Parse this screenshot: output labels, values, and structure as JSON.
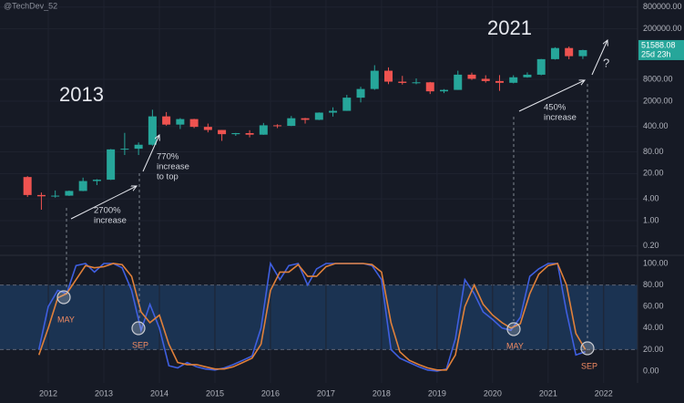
{
  "watermark": "@TechDev_52",
  "chart_data": [
    {
      "type": "candlestick",
      "log_scale": true,
      "xlim": [
        2011.13,
        2022.61
      ],
      "ylim": [
        0.11,
        1250000
      ],
      "yticks": [
        {
          "value": 800000,
          "label": "800000.00"
        },
        {
          "value": 200000,
          "label": "200000.00"
        },
        {
          "value": 8000,
          "label": "8000.00"
        },
        {
          "value": 2000,
          "label": "2000.00"
        },
        {
          "value": 400,
          "label": "400.00"
        },
        {
          "value": 80,
          "label": "80.00"
        },
        {
          "value": 20,
          "label": "20.00"
        },
        {
          "value": 4,
          "label": "4.00"
        },
        {
          "value": 1,
          "label": "1.00"
        },
        {
          "value": 0.2,
          "label": "0.20"
        }
      ],
      "up_color": "#26a69a",
      "down_color": "#ef5350",
      "x": [
        2011.625,
        2011.875,
        2012.125,
        2012.375,
        2012.625,
        2012.875,
        2013.125,
        2013.375,
        2013.625,
        2013.875,
        2014.125,
        2014.375,
        2014.625,
        2014.875,
        2015.125,
        2015.375,
        2015.625,
        2015.875,
        2016.125,
        2016.375,
        2016.625,
        2016.875,
        2017.125,
        2017.375,
        2017.625,
        2017.875,
        2018.125,
        2018.375,
        2018.625,
        2018.875,
        2019.125,
        2019.375,
        2019.625,
        2019.875,
        2020.125,
        2020.375,
        2020.625,
        2020.875,
        2021.125,
        2021.375,
        2021.625
      ],
      "open": [
        16,
        5.1,
        4.7,
        4.9,
        6.6,
        12.4,
        13.5,
        93,
        97,
        125,
        760,
        450,
        640,
        390,
        320,
        245,
        262,
        237,
        430,
        415,
        675,
        610,
        965,
        1080,
        2500,
        4340,
        13880,
        6930,
        6390,
        6630,
        3740,
        4100,
        10800,
        8300,
        7200,
        6440,
        9140,
        10780,
        28990,
        58800,
        35040
      ],
      "high": [
        17,
        6,
        6.8,
        6.8,
        15.4,
        14,
        95,
        266,
        145,
        1160,
        1000,
        680,
        650,
        480,
        320,
        265,
        315,
        500,
        460,
        780,
        690,
        980,
        1350,
        2980,
        5000,
        19700,
        17200,
        9990,
        8500,
        6800,
        4300,
        13880,
        12300,
        10400,
        10500,
        10400,
        12470,
        29300,
        61800,
        64800,
        52900
      ],
      "low": [
        4.5,
        2,
        4.3,
        4.8,
        6.5,
        9.6,
        13.3,
        65,
        65,
        118,
        420,
        340,
        360,
        275,
        160,
        220,
        200,
        235,
        360,
        410,
        480,
        600,
        750,
        1080,
        1850,
        4100,
        5900,
        5750,
        5880,
        3150,
        3350,
        4100,
        7750,
        6500,
        3850,
        6200,
        8900,
        10400,
        28100,
        28800,
        29300
      ],
      "close": [
        5.1,
        4.7,
        4.9,
        6.6,
        12.4,
        13.5,
        93,
        97,
        125,
        760,
        450,
        640,
        390,
        320,
        245,
        262,
        237,
        430,
        415,
        675,
        610,
        965,
        1080,
        2500,
        4340,
        13880,
        6930,
        6390,
        6630,
        3740,
        4100,
        10800,
        8300,
        7200,
        6440,
        9140,
        10780,
        28990,
        58800,
        35040,
        51588.08
      ],
      "last_price": 51588.08,
      "countdown": "25d 23h",
      "annotations": [
        [
          "2013"
        ],
        [
          "2021"
        ],
        [
          "2700%",
          "increase"
        ],
        [
          "770%",
          "increase",
          "to top"
        ],
        [
          "450%",
          "increase"
        ],
        [
          "?"
        ]
      ]
    },
    {
      "type": "line",
      "grid": true,
      "xlim": [
        2011.13,
        2022.61
      ],
      "xticks": [
        2012,
        2013,
        2014,
        2015,
        2016,
        2017,
        2018,
        2019,
        2020,
        2021,
        2022
      ],
      "ylim": [
        -11,
        107.6
      ],
      "yticks": [
        {
          "value": 100,
          "label": "100.00"
        },
        {
          "value": 80,
          "label": "80.00"
        },
        {
          "value": 60,
          "label": "60.00"
        },
        {
          "value": 40,
          "label": "40.00"
        },
        {
          "value": 20,
          "label": "20.00"
        },
        {
          "value": 0,
          "label": "0.00"
        }
      ],
      "band": [
        20,
        80
      ],
      "band_color": "#1b3352",
      "x": [
        2011.83,
        2012.0,
        2012.17,
        2012.33,
        2012.5,
        2012.67,
        2012.83,
        2013.0,
        2013.17,
        2013.33,
        2013.5,
        2013.67,
        2013.83,
        2014.0,
        2014.17,
        2014.33,
        2014.5,
        2014.67,
        2014.83,
        2015.0,
        2015.17,
        2015.33,
        2015.5,
        2015.67,
        2015.83,
        2016.0,
        2016.17,
        2016.33,
        2016.5,
        2016.67,
        2016.83,
        2017.0,
        2017.17,
        2017.33,
        2017.5,
        2017.67,
        2017.83,
        2018.0,
        2018.17,
        2018.33,
        2018.5,
        2018.67,
        2018.83,
        2019.0,
        2019.17,
        2019.33,
        2019.5,
        2019.67,
        2019.83,
        2020.0,
        2020.17,
        2020.33,
        2020.5,
        2020.67,
        2020.83,
        2021.0,
        2021.17,
        2021.33,
        2021.5,
        2021.67
      ],
      "series": [
        {
          "color": "#3f5fe0",
          "values": [
            20,
            60,
            75,
            72,
            98,
            100,
            92,
            100,
            100,
            96,
            75,
            38,
            62,
            40,
            5,
            3,
            8,
            4,
            2,
            1,
            3,
            6,
            10,
            14,
            40,
            100,
            85,
            98,
            100,
            80,
            95,
            100,
            100,
            100,
            100,
            100,
            98,
            85,
            20,
            12,
            8,
            4,
            1,
            0,
            2,
            30,
            85,
            72,
            55,
            48,
            40,
            38,
            50,
            88,
            95,
            100,
            100,
            55,
            15,
            18
          ]
        },
        {
          "color": "#e0803a",
          "values": [
            15,
            40,
            68,
            72,
            85,
            98,
            96,
            97,
            100,
            99,
            88,
            55,
            45,
            52,
            25,
            8,
            6,
            6,
            4,
            2,
            2,
            4,
            8,
            12,
            25,
            75,
            92,
            92,
            99,
            88,
            88,
            97,
            100,
            100,
            100,
            100,
            99,
            92,
            45,
            18,
            10,
            6,
            3,
            1,
            1,
            15,
            60,
            80,
            62,
            52,
            45,
            40,
            44,
            72,
            90,
            98,
            100,
            80,
            35,
            20
          ]
        }
      ],
      "markers": [
        "MAY",
        "SEP",
        "MAY",
        "SEP"
      ]
    }
  ]
}
